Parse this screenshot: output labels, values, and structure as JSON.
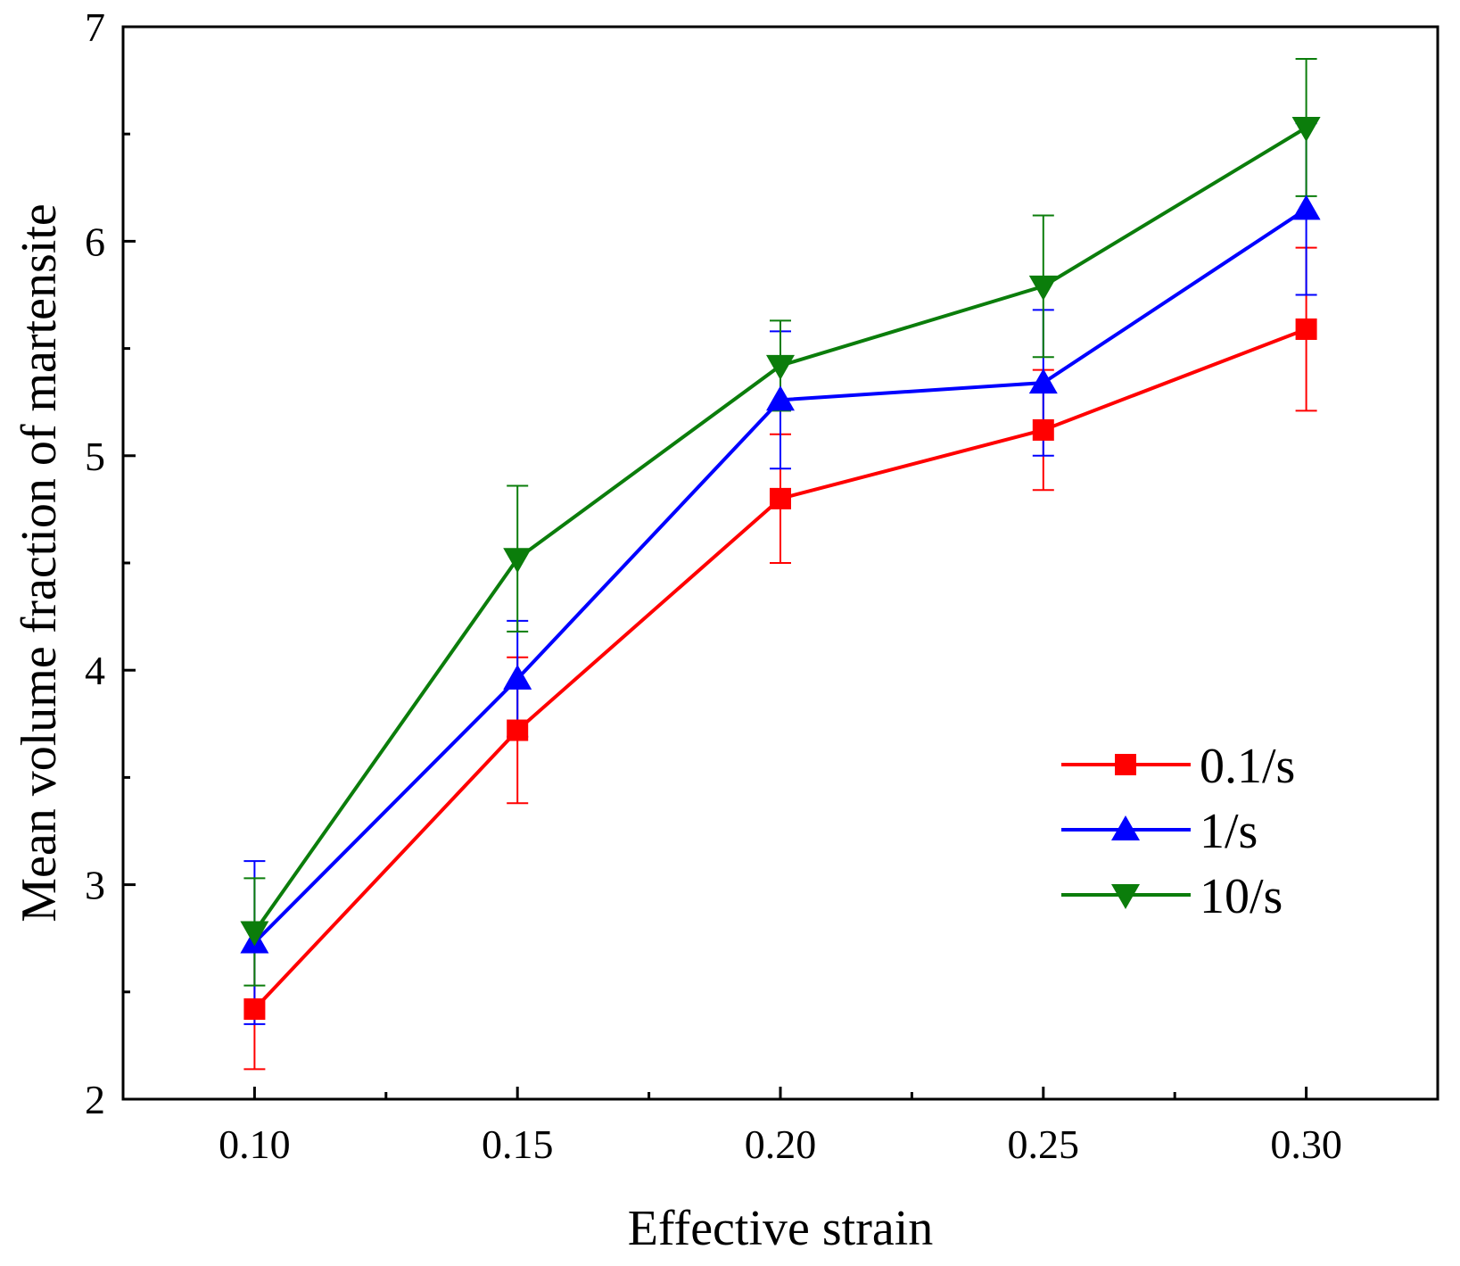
{
  "chart_data": {
    "type": "line",
    "title": "",
    "xlabel": "Effective strain",
    "ylabel": "Mean volume fraction of martensite",
    "x": [
      0.1,
      0.15,
      0.2,
      0.25,
      0.3
    ],
    "x_tick_labels": [
      "0.10",
      "0.15",
      "0.20",
      "0.25",
      "0.30"
    ],
    "y_tick_labels": [
      "2",
      "3",
      "4",
      "5",
      "6",
      "7"
    ],
    "xlim": [
      0.075,
      0.325
    ],
    "ylim": [
      2,
      7
    ],
    "grid": false,
    "legend_position": "bottom-right",
    "series": [
      {
        "name": "0.1/s",
        "color": "#ff0000",
        "marker": "square",
        "values": [
          2.42,
          3.72,
          4.8,
          5.12,
          5.59
        ],
        "errors": [
          0.28,
          0.34,
          0.3,
          0.28,
          0.38
        ]
      },
      {
        "name": "1/s",
        "color": "#0000ff",
        "marker": "triangle-up",
        "values": [
          2.73,
          3.96,
          5.26,
          5.34,
          6.15
        ],
        "errors": [
          0.38,
          0.27,
          0.32,
          0.34,
          0.4
        ]
      },
      {
        "name": "10/s",
        "color": "#0b7d0b",
        "marker": "triangle-down",
        "values": [
          2.78,
          4.52,
          5.42,
          5.79,
          6.53
        ],
        "errors": [
          0.25,
          0.34,
          0.21,
          0.33,
          0.32
        ]
      }
    ]
  }
}
